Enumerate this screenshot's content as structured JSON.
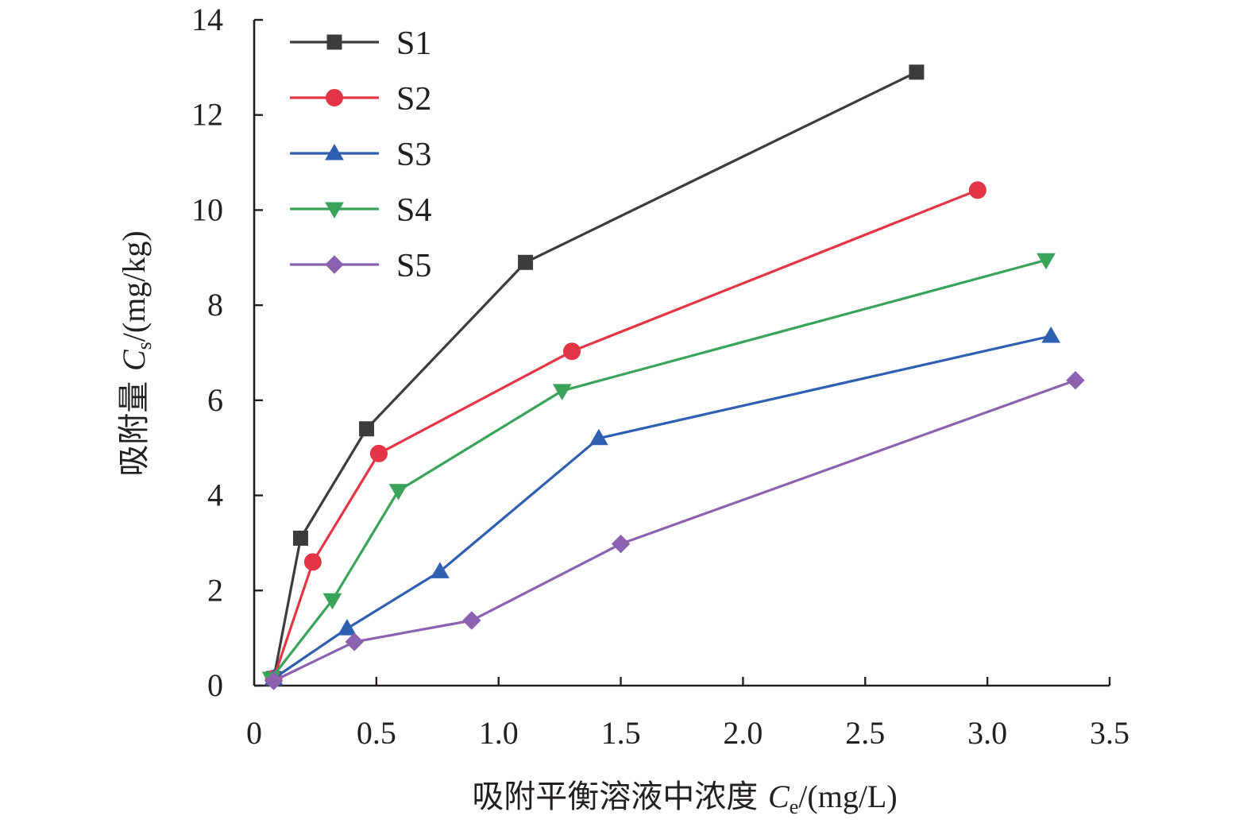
{
  "chart_data": {
    "type": "line",
    "xlabel": {
      "prefix": "吸附平衡溶液中浓度 ",
      "var": "C",
      "sub": "e",
      "unit": "/(mg/L)"
    },
    "ylabel": {
      "prefix": "吸附量 ",
      "var": "C",
      "sub": "s",
      "unit": "/(mg/kg)"
    },
    "xlim": [
      0,
      3.5
    ],
    "ylim": [
      0,
      14
    ],
    "xticks": [
      "0",
      "0.5",
      "1.0",
      "1.5",
      "2.0",
      "2.5",
      "3.0",
      "3.5"
    ],
    "yticks": [
      "0",
      "2",
      "4",
      "6",
      "8",
      "10",
      "12",
      "14"
    ],
    "legend_position": "top-left",
    "grid": false,
    "series": [
      {
        "name": "S1",
        "color": "#3c3c3e",
        "marker": "square",
        "x": [
          0.08,
          0.19,
          0.46,
          1.11,
          2.71
        ],
        "y": [
          0.15,
          3.1,
          5.4,
          8.9,
          12.9
        ]
      },
      {
        "name": "S2",
        "color": "#e33545",
        "marker": "circle",
        "x": [
          0.08,
          0.24,
          0.51,
          1.3,
          2.96
        ],
        "y": [
          0.15,
          2.6,
          4.88,
          7.03,
          10.42
        ]
      },
      {
        "name": "S3",
        "color": "#2e5fb0",
        "marker": "triangle-up",
        "x": [
          0.08,
          0.38,
          0.76,
          1.41,
          3.26
        ],
        "y": [
          0.15,
          1.2,
          2.4,
          5.2,
          7.35
        ]
      },
      {
        "name": "S4",
        "color": "#3aa35a",
        "marker": "triangle-down",
        "x": [
          0.07,
          0.32,
          0.59,
          1.26,
          3.24
        ],
        "y": [
          0.15,
          1.8,
          4.1,
          6.2,
          8.95
        ]
      },
      {
        "name": "S5",
        "color": "#8c62b0",
        "marker": "diamond",
        "x": [
          0.08,
          0.41,
          0.89,
          1.5,
          3.36
        ],
        "y": [
          0.1,
          0.92,
          1.37,
          2.98,
          6.42
        ]
      }
    ]
  }
}
